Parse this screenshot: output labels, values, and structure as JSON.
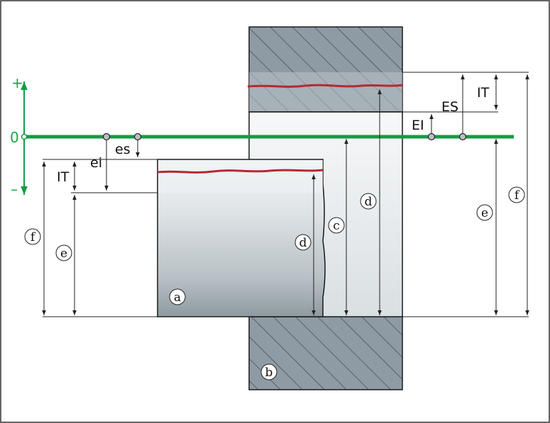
{
  "axis": {
    "plus": "+",
    "zero": "0",
    "minus": "–"
  },
  "labels": {
    "ei": "ei",
    "es": "es",
    "IT_shaft": "IT",
    "EI": "EI",
    "ES": "ES",
    "IT_hole": "IT"
  },
  "circles": {
    "a": "a",
    "b": "b",
    "c": "c",
    "d_shaft": "d",
    "d_hole": "d",
    "e_shaft": "e",
    "e_hole": "e",
    "f_shaft": "f",
    "f_hole": "f"
  },
  "colors": {
    "zero_line": "#139c45",
    "surface_line": "#b52a33",
    "hatch": "#4b5b66",
    "outline": "#1a1a1a"
  }
}
